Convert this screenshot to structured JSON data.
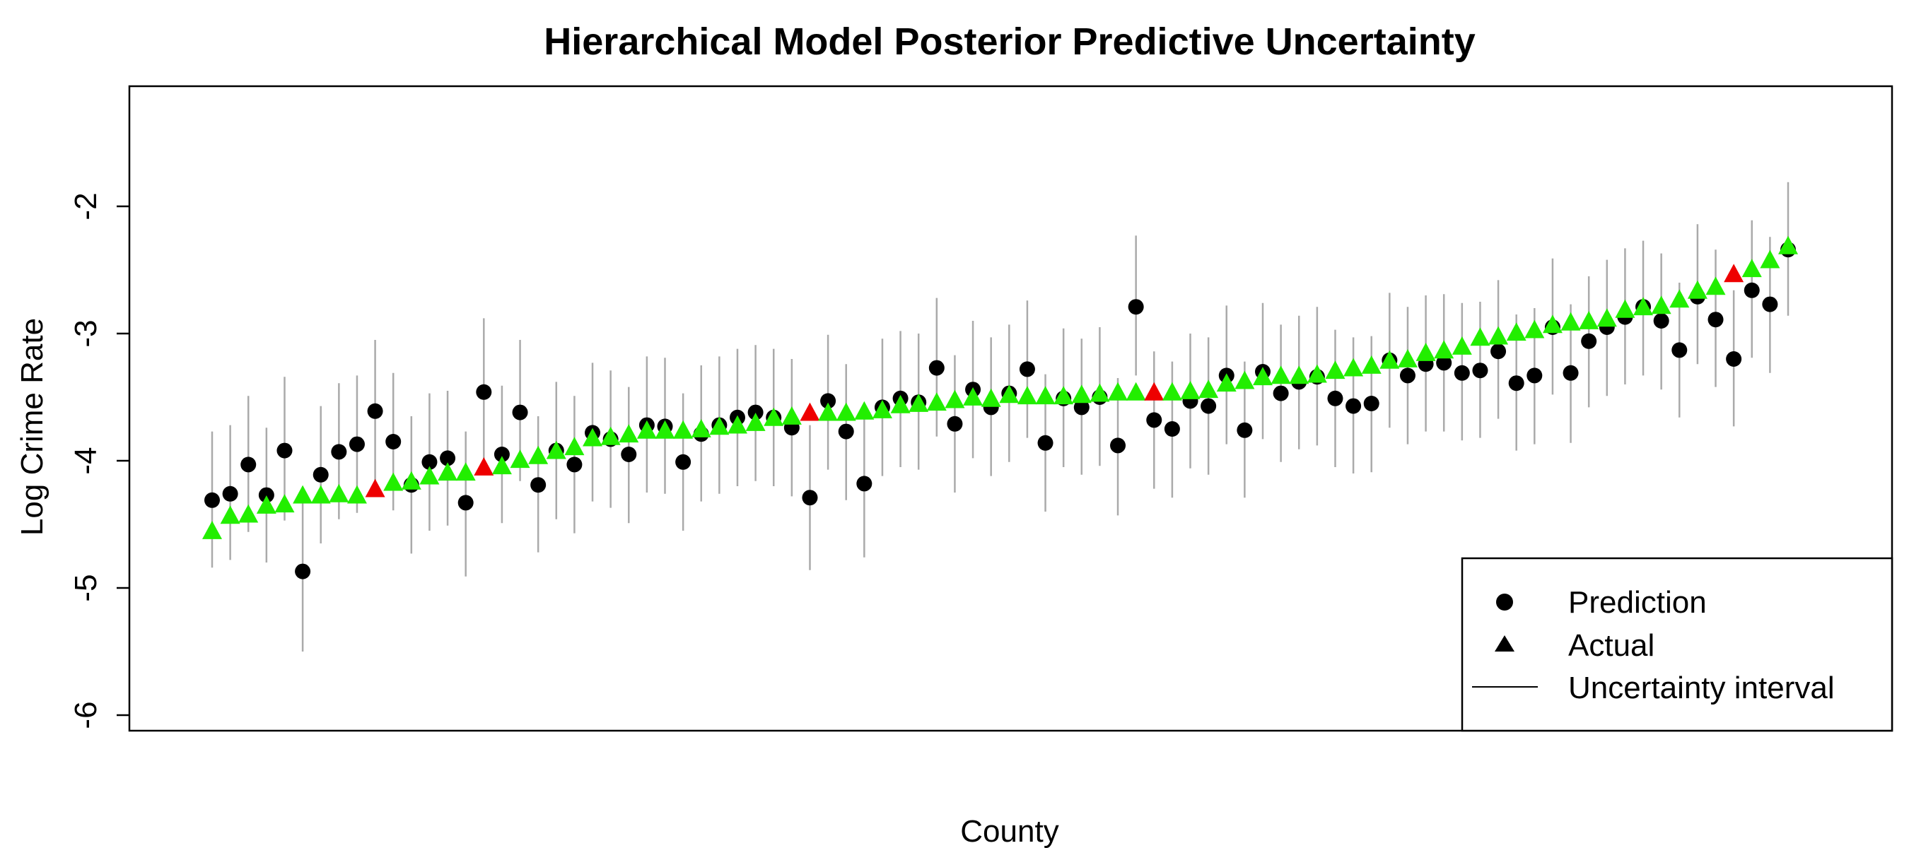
{
  "chart_data": {
    "type": "scatter",
    "title": "Hierarchical Model Posterior Predictive Uncertainty",
    "xlabel": "County",
    "ylabel": "Log Crime Rate",
    "ylim": [
      -6.1,
      -1.0
    ],
    "yticks": [
      -6,
      -5,
      -4,
      -3,
      -2
    ],
    "ytick_labels": [
      "-6",
      "-5",
      "-4",
      "-3",
      "-2"
    ],
    "legend": {
      "position": "bottom-right",
      "entries": [
        {
          "label": "Prediction",
          "marker": "circle",
          "color": "#000000"
        },
        {
          "label": "Actual",
          "marker": "triangle",
          "color": "#000000"
        },
        {
          "label": "Uncertainty interval",
          "marker": "line",
          "color": "#000000"
        }
      ]
    },
    "colors": {
      "actual_default": "#22ee00",
      "actual_highlight": "#ee0000",
      "prediction": "#000000",
      "interval": "#aaaaaa",
      "axis": "#000000"
    },
    "series": [
      {
        "name": "Prediction",
        "values": [
          -4.31,
          -4.26,
          -4.03,
          -4.27,
          -3.92,
          -4.87,
          -4.11,
          -3.93,
          -3.87,
          -3.61,
          -3.85,
          -4.19,
          -4.01,
          -3.98,
          -4.33,
          -3.46,
          -3.95,
          -3.62,
          -4.19,
          -3.92,
          -4.03,
          -3.78,
          -3.83,
          -3.95,
          -3.72,
          -3.73,
          -4.01,
          -3.79,
          -3.72,
          -3.66,
          -3.62,
          -3.66,
          -3.74,
          -4.29,
          -3.53,
          -3.77,
          -4.18,
          -3.58,
          -3.51,
          -3.54,
          -3.27,
          -3.71,
          -3.44,
          -3.58,
          -3.47,
          -3.28,
          -3.86,
          -3.51,
          -3.58,
          -3.5,
          -3.88,
          -2.79,
          -3.68,
          -3.75,
          -3.53,
          -3.57,
          -3.33,
          -3.76,
          -3.3,
          -3.47,
          -3.38,
          -3.34,
          -3.51,
          -3.57,
          -3.55,
          -3.21,
          -3.33,
          -3.24,
          -3.23,
          -3.31,
          -3.29,
          -3.14,
          -3.39,
          -3.33,
          -2.95,
          -3.31,
          -3.06,
          -2.95,
          -2.87,
          -2.79,
          -2.9,
          -3.13,
          -2.71,
          -2.89,
          -3.2,
          -2.66,
          -2.77,
          -2.34
        ]
      },
      {
        "name": "Actual",
        "values": [
          -4.55,
          -4.43,
          -4.42,
          -4.35,
          -4.34,
          -4.27,
          -4.27,
          -4.26,
          -4.27,
          -4.22,
          -4.17,
          -4.16,
          -4.12,
          -4.09,
          -4.09,
          -4.05,
          -4.04,
          -3.99,
          -3.96,
          -3.92,
          -3.89,
          -3.82,
          -3.81,
          -3.79,
          -3.76,
          -3.76,
          -3.76,
          -3.75,
          -3.73,
          -3.72,
          -3.7,
          -3.66,
          -3.65,
          -3.62,
          -3.62,
          -3.62,
          -3.61,
          -3.6,
          -3.56,
          -3.55,
          -3.54,
          -3.52,
          -3.5,
          -3.51,
          -3.48,
          -3.49,
          -3.49,
          -3.49,
          -3.48,
          -3.47,
          -3.46,
          -3.46,
          -3.46,
          -3.46,
          -3.45,
          -3.44,
          -3.39,
          -3.37,
          -3.34,
          -3.33,
          -3.33,
          -3.32,
          -3.29,
          -3.27,
          -3.25,
          -3.21,
          -3.2,
          -3.15,
          -3.13,
          -3.1,
          -3.03,
          -3.02,
          -2.99,
          -2.97,
          -2.93,
          -2.91,
          -2.9,
          -2.88,
          -2.81,
          -2.79,
          -2.78,
          -2.73,
          -2.66,
          -2.63,
          -2.53,
          -2.49,
          -2.42,
          -2.31
        ],
        "highlight": [
          9,
          15,
          33,
          52,
          84
        ]
      },
      {
        "name": "Uncertainty interval",
        "lower": [
          -4.84,
          -4.78,
          -4.56,
          -4.8,
          -4.47,
          -5.5,
          -4.65,
          -4.46,
          -4.41,
          -4.19,
          -4.39,
          -4.73,
          -4.55,
          -4.51,
          -4.91,
          -4.0,
          -4.49,
          -4.16,
          -4.72,
          -4.46,
          -4.57,
          -4.32,
          -4.37,
          -4.49,
          -4.25,
          -4.26,
          -4.55,
          -4.32,
          -4.26,
          -4.2,
          -4.16,
          -4.2,
          -4.28,
          -4.86,
          -4.07,
          -4.31,
          -4.76,
          -4.12,
          -4.05,
          -4.07,
          -3.81,
          -4.25,
          -3.98,
          -4.12,
          -4.01,
          -3.82,
          -4.4,
          -4.05,
          -4.11,
          -4.04,
          -4.43,
          -3.33,
          -4.22,
          -4.29,
          -4.06,
          -4.11,
          -3.87,
          -4.29,
          -3.83,
          -4.01,
          -3.91,
          -3.88,
          -4.05,
          -4.1,
          -4.09,
          -3.74,
          -3.87,
          -3.77,
          -3.77,
          -3.84,
          -3.82,
          -3.67,
          -3.92,
          -3.87,
          -3.48,
          -3.86,
          -3.58,
          -3.49,
          -3.4,
          -3.33,
          -3.44,
          -3.66,
          -3.24,
          -3.42,
          -3.73,
          -3.19,
          -3.31,
          -2.86
        ],
        "upper": [
          -3.77,
          -3.72,
          -3.49,
          -3.74,
          -3.34,
          -4.33,
          -3.57,
          -3.39,
          -3.33,
          -3.05,
          -3.31,
          -3.65,
          -3.47,
          -3.45,
          -3.77,
          -2.88,
          -3.41,
          -3.05,
          -3.65,
          -3.38,
          -3.49,
          -3.23,
          -3.29,
          -3.42,
          -3.18,
          -3.19,
          -3.47,
          -3.25,
          -3.18,
          -3.12,
          -3.09,
          -3.12,
          -3.2,
          -3.72,
          -3.01,
          -3.24,
          -3.6,
          -3.04,
          -2.98,
          -3.0,
          -2.72,
          -3.17,
          -2.9,
          -3.03,
          -2.93,
          -2.74,
          -3.32,
          -2.96,
          -3.04,
          -2.95,
          -3.35,
          -2.23,
          -3.14,
          -3.22,
          -3.0,
          -3.03,
          -2.78,
          -3.22,
          -2.76,
          -2.93,
          -2.86,
          -2.79,
          -2.97,
          -3.03,
          -3.02,
          -2.68,
          -2.79,
          -2.7,
          -2.69,
          -2.76,
          -2.75,
          -2.58,
          -2.85,
          -2.8,
          -2.41,
          -2.77,
          -2.55,
          -2.42,
          -2.33,
          -2.27,
          -2.37,
          -2.6,
          -2.14,
          -2.34,
          -2.66,
          -2.11,
          -2.24,
          -1.81
        ]
      }
    ]
  }
}
